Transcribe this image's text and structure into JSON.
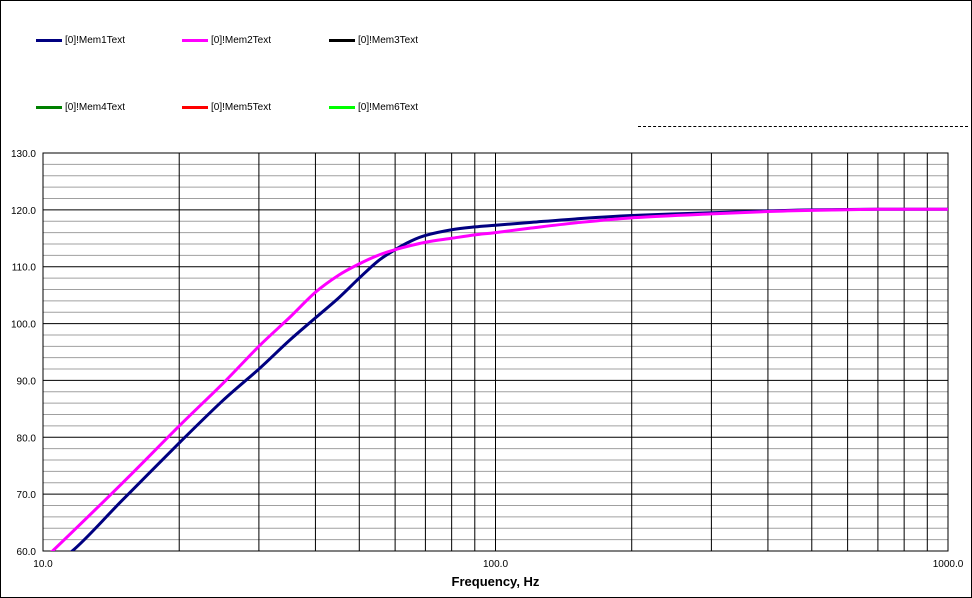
{
  "chart_data": {
    "type": "line",
    "title": "",
    "xlabel": "Frequency, Hz",
    "ylabel": "",
    "x_scale": "log",
    "xlim": [
      10,
      1000
    ],
    "ylim": [
      60,
      130
    ],
    "grid": true,
    "legend_position": "top",
    "x_tick_labels": [
      "10.0",
      "100.0",
      "1000.0"
    ],
    "y_tick_labels": [
      "60.0",
      "70.0",
      "80.0",
      "90.0",
      "100.0",
      "110.0",
      "120.0",
      "130.0"
    ],
    "series": [
      {
        "name": "[0]!Mem1Text",
        "color": "#000080",
        "x": [
          10,
          11.6,
          15,
          20,
          25,
          30,
          35,
          40,
          45,
          50,
          55,
          60,
          65,
          70,
          80,
          90,
          100,
          120,
          150,
          200,
          300,
          400,
          500,
          700,
          1000
        ],
        "y": [
          57.5,
          60,
          69,
          79,
          86.5,
          92,
          97,
          101,
          104.5,
          108,
          111,
          113,
          114.5,
          115.5,
          116.5,
          117,
          117.3,
          117.8,
          118.4,
          119,
          119.5,
          119.8,
          120,
          120.1,
          120.1
        ]
      },
      {
        "name": "[0]!Mem2Text",
        "color": "#ff00ff",
        "x": [
          10,
          10.5,
          15,
          20,
          25,
          30,
          35,
          40,
          45,
          50,
          55,
          60,
          70,
          80,
          90,
          100,
          120,
          150,
          200,
          300,
          400,
          500,
          700,
          1000
        ],
        "y": [
          58.5,
          60,
          72,
          82,
          89.5,
          96,
          101,
          105.5,
          108.5,
          110.5,
          112,
          113,
          114.3,
          115,
          115.6,
          116,
          116.8,
          117.7,
          118.6,
          119.3,
          119.7,
          119.9,
          120.1,
          120.1
        ]
      },
      {
        "name": "[0]!Mem3Text",
        "color": "#000000",
        "x": [],
        "y": []
      },
      {
        "name": "[0]!Mem4Text",
        "color": "#008000",
        "x": [],
        "y": []
      },
      {
        "name": "[0]!Mem5Text",
        "color": "#ff0000",
        "x": [],
        "y": []
      },
      {
        "name": "[0]!Mem6Text",
        "color": "#00ff00",
        "x": [],
        "y": []
      }
    ]
  }
}
